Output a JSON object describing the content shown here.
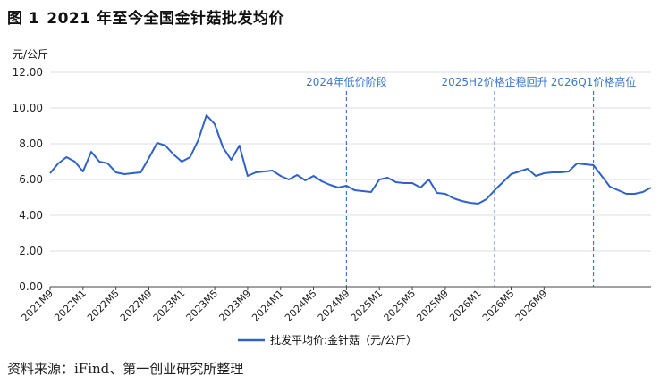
{
  "figure": {
    "number": "图 1",
    "title": "2021 年至今全国金针菇批发均价",
    "source": "资料来源：iFind、第一创业研究所整理"
  },
  "chart_data": {
    "type": "line",
    "ylabel": "元/公斤",
    "ylim": [
      0,
      12
    ],
    "yticks": [
      "0.00",
      "2.00",
      "4.00",
      "6.00",
      "8.00",
      "10.00",
      "12.00"
    ],
    "xticks": [
      "2021M9",
      "2022M1",
      "2022M5",
      "2022M9",
      "2023M1",
      "2023M5",
      "2023M9",
      "2024M1",
      "2024M5",
      "2024M9",
      "2025M1",
      "2025M5",
      "2025M9",
      "2026M1",
      "2026M5",
      "2026M9"
    ],
    "legend_position": "bottom",
    "grid": "horizontal",
    "colors": {
      "line": "#2e62c9",
      "annotation": "#3d78c9",
      "axis": "#444444",
      "grid": "#dddddd"
    },
    "series": [
      {
        "name": "批发平均价:金针菇（元/公斤）",
        "values": [
          6.35,
          6.9,
          7.25,
          7.0,
          6.45,
          7.55,
          7.0,
          6.9,
          6.4,
          6.3,
          6.35,
          6.4,
          7.2,
          8.05,
          7.9,
          7.4,
          7.0,
          7.25,
          8.2,
          9.6,
          9.1,
          7.8,
          7.1,
          7.9,
          6.2,
          6.4,
          6.45,
          6.5,
          6.2,
          6.0,
          6.25,
          5.95,
          6.2,
          5.9,
          5.7,
          5.55,
          5.65,
          5.4,
          5.35,
          5.3,
          6.0,
          6.1,
          5.85,
          5.8,
          5.8,
          5.55,
          6.0,
          5.25,
          5.2,
          4.95,
          4.8,
          4.7,
          4.65,
          4.9,
          5.4,
          5.85,
          6.3,
          6.45,
          6.6,
          6.2,
          6.35,
          6.4,
          6.4,
          6.45,
          6.9,
          6.85,
          6.8,
          6.2,
          5.6,
          5.4,
          5.2,
          5.2,
          5.3,
          5.55
        ]
      }
    ],
    "annotations": [
      {
        "label": "2024年低价阶段",
        "x_index": 36
      },
      {
        "label": "2025H2价格企稳回升",
        "x_index": 54
      },
      {
        "label": "2026Q1价格高位",
        "x_index": 66
      }
    ]
  }
}
